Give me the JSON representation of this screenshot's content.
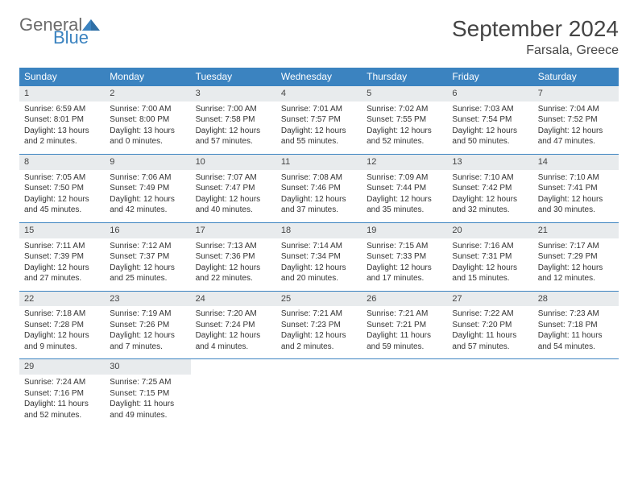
{
  "logo": {
    "line1": "General",
    "line2": "Blue"
  },
  "title": "September 2024",
  "location": "Farsala, Greece",
  "colors": {
    "header_bg": "#3b83c0",
    "header_fg": "#ffffff",
    "daynum_bg": "#e8ebed",
    "row_border": "#3b83c0",
    "logo_gray": "#6b6b6b",
    "logo_blue": "#3b83c0"
  },
  "dayNames": [
    "Sunday",
    "Monday",
    "Tuesday",
    "Wednesday",
    "Thursday",
    "Friday",
    "Saturday"
  ],
  "weeks": [
    [
      {
        "n": "1",
        "sr": "Sunrise: 6:59 AM",
        "ss": "Sunset: 8:01 PM",
        "dl": "Daylight: 13 hours and 2 minutes."
      },
      {
        "n": "2",
        "sr": "Sunrise: 7:00 AM",
        "ss": "Sunset: 8:00 PM",
        "dl": "Daylight: 13 hours and 0 minutes."
      },
      {
        "n": "3",
        "sr": "Sunrise: 7:00 AM",
        "ss": "Sunset: 7:58 PM",
        "dl": "Daylight: 12 hours and 57 minutes."
      },
      {
        "n": "4",
        "sr": "Sunrise: 7:01 AM",
        "ss": "Sunset: 7:57 PM",
        "dl": "Daylight: 12 hours and 55 minutes."
      },
      {
        "n": "5",
        "sr": "Sunrise: 7:02 AM",
        "ss": "Sunset: 7:55 PM",
        "dl": "Daylight: 12 hours and 52 minutes."
      },
      {
        "n": "6",
        "sr": "Sunrise: 7:03 AM",
        "ss": "Sunset: 7:54 PM",
        "dl": "Daylight: 12 hours and 50 minutes."
      },
      {
        "n": "7",
        "sr": "Sunrise: 7:04 AM",
        "ss": "Sunset: 7:52 PM",
        "dl": "Daylight: 12 hours and 47 minutes."
      }
    ],
    [
      {
        "n": "8",
        "sr": "Sunrise: 7:05 AM",
        "ss": "Sunset: 7:50 PM",
        "dl": "Daylight: 12 hours and 45 minutes."
      },
      {
        "n": "9",
        "sr": "Sunrise: 7:06 AM",
        "ss": "Sunset: 7:49 PM",
        "dl": "Daylight: 12 hours and 42 minutes."
      },
      {
        "n": "10",
        "sr": "Sunrise: 7:07 AM",
        "ss": "Sunset: 7:47 PM",
        "dl": "Daylight: 12 hours and 40 minutes."
      },
      {
        "n": "11",
        "sr": "Sunrise: 7:08 AM",
        "ss": "Sunset: 7:46 PM",
        "dl": "Daylight: 12 hours and 37 minutes."
      },
      {
        "n": "12",
        "sr": "Sunrise: 7:09 AM",
        "ss": "Sunset: 7:44 PM",
        "dl": "Daylight: 12 hours and 35 minutes."
      },
      {
        "n": "13",
        "sr": "Sunrise: 7:10 AM",
        "ss": "Sunset: 7:42 PM",
        "dl": "Daylight: 12 hours and 32 minutes."
      },
      {
        "n": "14",
        "sr": "Sunrise: 7:10 AM",
        "ss": "Sunset: 7:41 PM",
        "dl": "Daylight: 12 hours and 30 minutes."
      }
    ],
    [
      {
        "n": "15",
        "sr": "Sunrise: 7:11 AM",
        "ss": "Sunset: 7:39 PM",
        "dl": "Daylight: 12 hours and 27 minutes."
      },
      {
        "n": "16",
        "sr": "Sunrise: 7:12 AM",
        "ss": "Sunset: 7:37 PM",
        "dl": "Daylight: 12 hours and 25 minutes."
      },
      {
        "n": "17",
        "sr": "Sunrise: 7:13 AM",
        "ss": "Sunset: 7:36 PM",
        "dl": "Daylight: 12 hours and 22 minutes."
      },
      {
        "n": "18",
        "sr": "Sunrise: 7:14 AM",
        "ss": "Sunset: 7:34 PM",
        "dl": "Daylight: 12 hours and 20 minutes."
      },
      {
        "n": "19",
        "sr": "Sunrise: 7:15 AM",
        "ss": "Sunset: 7:33 PM",
        "dl": "Daylight: 12 hours and 17 minutes."
      },
      {
        "n": "20",
        "sr": "Sunrise: 7:16 AM",
        "ss": "Sunset: 7:31 PM",
        "dl": "Daylight: 12 hours and 15 minutes."
      },
      {
        "n": "21",
        "sr": "Sunrise: 7:17 AM",
        "ss": "Sunset: 7:29 PM",
        "dl": "Daylight: 12 hours and 12 minutes."
      }
    ],
    [
      {
        "n": "22",
        "sr": "Sunrise: 7:18 AM",
        "ss": "Sunset: 7:28 PM",
        "dl": "Daylight: 12 hours and 9 minutes."
      },
      {
        "n": "23",
        "sr": "Sunrise: 7:19 AM",
        "ss": "Sunset: 7:26 PM",
        "dl": "Daylight: 12 hours and 7 minutes."
      },
      {
        "n": "24",
        "sr": "Sunrise: 7:20 AM",
        "ss": "Sunset: 7:24 PM",
        "dl": "Daylight: 12 hours and 4 minutes."
      },
      {
        "n": "25",
        "sr": "Sunrise: 7:21 AM",
        "ss": "Sunset: 7:23 PM",
        "dl": "Daylight: 12 hours and 2 minutes."
      },
      {
        "n": "26",
        "sr": "Sunrise: 7:21 AM",
        "ss": "Sunset: 7:21 PM",
        "dl": "Daylight: 11 hours and 59 minutes."
      },
      {
        "n": "27",
        "sr": "Sunrise: 7:22 AM",
        "ss": "Sunset: 7:20 PM",
        "dl": "Daylight: 11 hours and 57 minutes."
      },
      {
        "n": "28",
        "sr": "Sunrise: 7:23 AM",
        "ss": "Sunset: 7:18 PM",
        "dl": "Daylight: 11 hours and 54 minutes."
      }
    ],
    [
      {
        "n": "29",
        "sr": "Sunrise: 7:24 AM",
        "ss": "Sunset: 7:16 PM",
        "dl": "Daylight: 11 hours and 52 minutes."
      },
      {
        "n": "30",
        "sr": "Sunrise: 7:25 AM",
        "ss": "Sunset: 7:15 PM",
        "dl": "Daylight: 11 hours and 49 minutes."
      },
      null,
      null,
      null,
      null,
      null
    ]
  ]
}
